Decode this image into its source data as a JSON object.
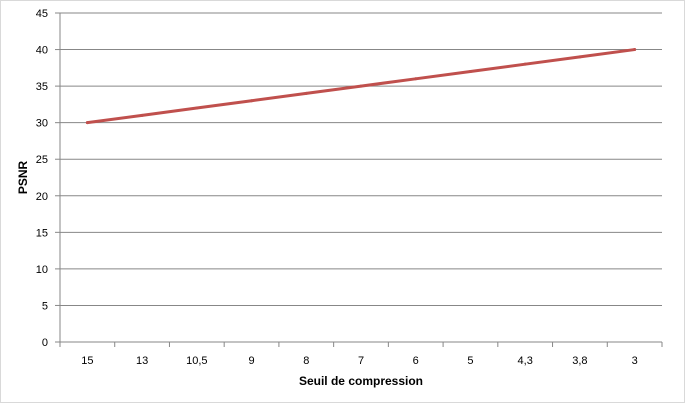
{
  "chart_data": {
    "type": "line",
    "title": "",
    "xlabel": "Seuil de compression",
    "ylabel": "PSNR",
    "categories": [
      "15",
      "13",
      "10,5",
      "9",
      "8",
      "7",
      "6",
      "5",
      "4,3",
      "3,8",
      "3"
    ],
    "series": [
      {
        "values": [
          30,
          31,
          32,
          33,
          34,
          35,
          36,
          37,
          38,
          39,
          40
        ],
        "color": "#c0504d"
      }
    ],
    "ylim": [
      0,
      45
    ],
    "yticks": [
      0,
      5,
      10,
      15,
      20,
      25,
      30,
      35,
      40,
      45
    ],
    "grid": true,
    "legend": "none"
  }
}
